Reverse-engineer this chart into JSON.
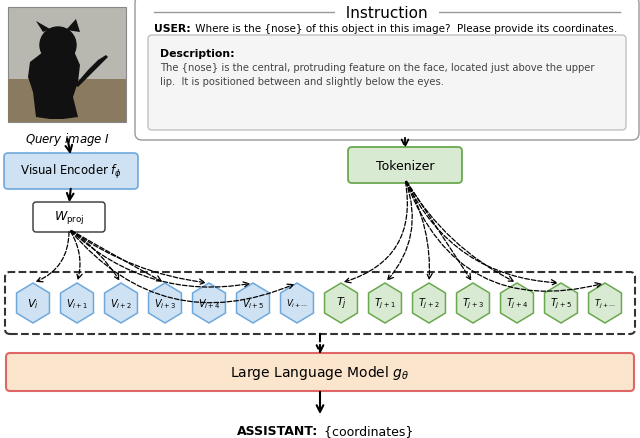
{
  "title": "Instruction",
  "user_bold": "USER:",
  "user_rest": " Where is the {nose} of this object in this image?  Please provide its coordinates.",
  "desc_title": "Description:",
  "desc_body": "The {nose} is the central, protruding feature on the face, located just above the upper\nlip.  It is positioned between and slightly below the eyes.",
  "visual_encoder_label": "Visual Encoder $f_{\\phi}$",
  "w_proj_label": "$W_{\\rm proj}$",
  "tokenizer_label": "Tokenizer",
  "llm_label": "Large Language Model $g_{\\theta}$",
  "query_label": "Query image $I$",
  "assistant_bold": "ASSISTANT:",
  "assistant_rest": " {coordinates}",
  "v_tokens": [
    "$V_i$",
    "$V_{i+1}$",
    "$V_{i+2}$",
    "$V_{i+3}$",
    "$V_{i+4}$",
    "$V_{i+5}$",
    "$V_{i+{\\cdots}}$"
  ],
  "t_tokens": [
    "$T_j$",
    "$T_{j+1}$",
    "$T_{j+2}$",
    "$T_{j+3}$",
    "$T_{j+4}$",
    "$T_{j+5}$",
    "$T_{j+{\\cdots}}$"
  ],
  "v_color": "#cfe2f3",
  "v_edge_color": "#6fa8dc",
  "t_color": "#d9ead3",
  "t_edge_color": "#6aa84f",
  "ve_box_color": "#cfe2f3",
  "ve_edge_color": "#6fa8dc",
  "tok_box_color": "#d9ead3",
  "tok_edge_color": "#6aa84f",
  "llm_box_color": "#fce5cd",
  "llm_edge_color": "#e06666",
  "wpj_box_color": "#ffffff",
  "wpj_edge_color": "#333333",
  "instr_box_color": "#ffffff",
  "instr_edge_color": "#999999",
  "desc_box_color": "#f5f5f5",
  "desc_edge_color": "#bbbbbb",
  "bg_color": "#ffffff",
  "cat_bg": "#b8b8b0",
  "cat_body": "#1a1a1a",
  "cat_ground": "#8a7a60"
}
